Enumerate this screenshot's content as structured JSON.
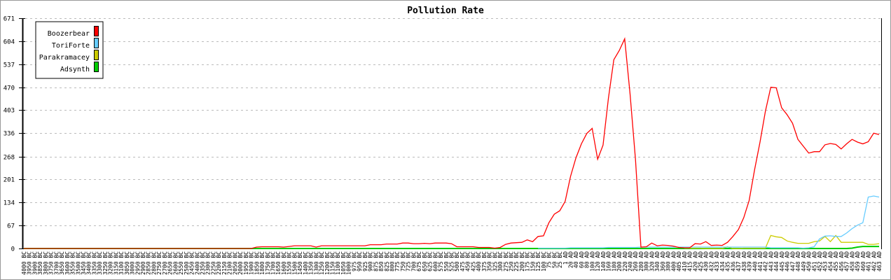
{
  "chart_data": {
    "type": "line",
    "title": "Pollution Rate",
    "xlabel": "",
    "ylabel": "",
    "ylim": [
      0,
      671
    ],
    "yticks": [
      0,
      67,
      134,
      201,
      268,
      336,
      403,
      470,
      537,
      604,
      671
    ],
    "grid": "horizontal dashed",
    "legend_position": "top-left",
    "categories": [
      "4000 BC",
      "3950 BC",
      "3900 BC",
      "3850 BC",
      "3800 BC",
      "3750 BC",
      "3700 BC",
      "3650 BC",
      "3600 BC",
      "3550 BC",
      "3500 BC",
      "3450 BC",
      "3400 BC",
      "3350 BC",
      "3300 BC",
      "3250 BC",
      "3200 BC",
      "3150 BC",
      "3100 BC",
      "3050 BC",
      "3000 BC",
      "2950 BC",
      "2900 BC",
      "2850 BC",
      "2800 BC",
      "2750 BC",
      "2700 BC",
      "2650 BC",
      "2600 BC",
      "2550 BC",
      "2500 BC",
      "2450 BC",
      "2400 BC",
      "2350 BC",
      "2300 BC",
      "2250 BC",
      "2200 BC",
      "2150 BC",
      "2100 BC",
      "2050 BC",
      "2000 BC",
      "1950 BC",
      "1900 BC",
      "1850 BC",
      "1800 BC",
      "1750 BC",
      "1700 BC",
      "1650 BC",
      "1600 BC",
      "1550 BC",
      "1500 BC",
      "1450 BC",
      "1400 BC",
      "1350 BC",
      "1300 BC",
      "1250 BC",
      "1200 BC",
      "1150 BC",
      "1100 BC",
      "1050 BC",
      "1000 BC",
      "975 BC",
      "950 BC",
      "925 BC",
      "900 BC",
      "875 BC",
      "850 BC",
      "825 BC",
      "800 BC",
      "775 BC",
      "750 BC",
      "725 BC",
      "700 BC",
      "675 BC",
      "650 BC",
      "625 BC",
      "600 BC",
      "575 BC",
      "550 BC",
      "525 BC",
      "500 BC",
      "475 BC",
      "450 BC",
      "425 BC",
      "400 BC",
      "375 BC",
      "350 BC",
      "325 BC",
      "300 BC",
      "275 BC",
      "250 BC",
      "225 BC",
      "200 BC",
      "175 BC",
      "150 BC",
      "125 BC",
      "100 BC",
      "75 BC",
      "50 BC",
      "25 BC",
      "1 AD",
      "20 AD",
      "40 AD",
      "60 AD",
      "80 AD",
      "100 AD",
      "120 AD",
      "140 AD",
      "160 AD",
      "180 AD",
      "200 AD",
      "220 AD",
      "240 AD",
      "260 AD",
      "280 AD",
      "300 AD",
      "320 AD",
      "340 AD",
      "360 AD",
      "380 AD",
      "400 AD",
      "405 AD",
      "410 AD",
      "415 AD",
      "420 AD",
      "425 AD",
      "430 AD",
      "432 AD",
      "433 AD",
      "434 AD",
      "435 AD",
      "436 AD",
      "437 AD",
      "438 AD",
      "439 AD",
      "440 AD",
      "441 AD",
      "442 AD",
      "443 AD",
      "444 AD",
      "445 AD",
      "446 AD",
      "447 AD",
      "448 AD",
      "449 AD",
      "450 AD",
      "451 AD",
      "452 AD",
      "453 AD",
      "454 AD",
      "455 AD",
      "456 AD",
      "457 AD",
      "458 AD",
      "459 AD",
      "460 AD",
      "461 AD",
      "462 AD",
      "463 AD"
    ],
    "series": [
      {
        "name": "Boozerbear",
        "color": "#ff0000",
        "values": [
          0,
          0,
          0,
          0,
          0,
          0,
          0,
          0,
          0,
          0,
          0,
          0,
          0,
          0,
          0,
          0,
          0,
          0,
          0,
          0,
          0,
          0,
          0,
          0,
          0,
          0,
          0,
          0,
          0,
          0,
          0,
          0,
          0,
          0,
          0,
          0,
          0,
          0,
          0,
          0,
          0,
          0,
          0,
          4,
          5,
          5,
          5,
          5,
          4,
          6,
          8,
          8,
          8,
          8,
          4,
          8,
          8,
          8,
          8,
          8,
          8,
          8,
          8,
          8,
          11,
          11,
          11,
          13,
          13,
          13,
          16,
          16,
          14,
          14,
          15,
          14,
          16,
          16,
          16,
          14,
          5,
          5,
          5,
          5,
          3,
          3,
          3,
          1,
          3,
          12,
          16,
          17,
          18,
          25,
          20,
          35,
          37,
          75,
          100,
          110,
          137,
          210,
          264,
          305,
          335,
          350,
          260,
          301,
          438,
          550,
          577,
          611,
          450,
          260,
          4,
          5,
          16,
          8,
          10,
          9,
          7,
          3,
          2,
          2,
          14,
          13,
          20,
          9,
          10,
          9,
          18,
          35,
          55,
          90,
          140,
          230,
          310,
          400,
          470,
          468,
          410,
          390,
          365,
          318,
          298,
          278,
          282,
          282,
          302,
          306,
          303,
          290,
          305,
          318,
          310,
          305,
          311,
          336,
          332
        ]
      },
      {
        "name": "ToriForte",
        "color": "#66ccff",
        "values": [
          null,
          null,
          null,
          null,
          null,
          null,
          null,
          null,
          null,
          null,
          null,
          null,
          null,
          null,
          null,
          null,
          null,
          null,
          null,
          null,
          null,
          null,
          null,
          null,
          null,
          null,
          null,
          null,
          null,
          null,
          null,
          null,
          null,
          null,
          null,
          null,
          null,
          null,
          null,
          null,
          null,
          null,
          null,
          null,
          null,
          null,
          null,
          null,
          null,
          null,
          null,
          null,
          null,
          null,
          null,
          null,
          null,
          null,
          null,
          null,
          null,
          null,
          null,
          null,
          null,
          null,
          null,
          null,
          null,
          null,
          null,
          null,
          null,
          null,
          null,
          null,
          null,
          null,
          null,
          null,
          null,
          null,
          null,
          null,
          null,
          null,
          null,
          null,
          null,
          null,
          null,
          null,
          null,
          null,
          null,
          1,
          1,
          1,
          1,
          1,
          1,
          2,
          2,
          2,
          2,
          2,
          2,
          2,
          3,
          3,
          3,
          3,
          3,
          3,
          4,
          4,
          4,
          4,
          4,
          4,
          4,
          4,
          4,
          4,
          4,
          4,
          4,
          4,
          4,
          4,
          4,
          4,
          4,
          4,
          4,
          4,
          4,
          4,
          2,
          2,
          2,
          2,
          2,
          2,
          1,
          2,
          5,
          28,
          36,
          37,
          35,
          35,
          45,
          58,
          68,
          75,
          150,
          153,
          150
        ]
      },
      {
        "name": "Parakramacey",
        "color": "#cccc00",
        "values": [
          null,
          null,
          null,
          null,
          null,
          null,
          null,
          null,
          null,
          null,
          null,
          null,
          null,
          null,
          null,
          null,
          null,
          null,
          null,
          null,
          null,
          null,
          null,
          null,
          null,
          null,
          null,
          null,
          null,
          null,
          null,
          null,
          null,
          null,
          null,
          null,
          null,
          null,
          null,
          null,
          null,
          null,
          null,
          null,
          null,
          null,
          null,
          null,
          null,
          null,
          null,
          null,
          null,
          null,
          null,
          null,
          null,
          null,
          null,
          null,
          null,
          null,
          null,
          null,
          null,
          null,
          null,
          null,
          null,
          null,
          null,
          null,
          null,
          null,
          null,
          null,
          null,
          null,
          null,
          null,
          null,
          null,
          null,
          null,
          null,
          null,
          null,
          null,
          null,
          null,
          null,
          null,
          null,
          null,
          null,
          null,
          null,
          null,
          null,
          null,
          null,
          null,
          null,
          null,
          null,
          null,
          null,
          null,
          null,
          null,
          null,
          null,
          null,
          null,
          null,
          null,
          null,
          null,
          null,
          null,
          null,
          null,
          1,
          1,
          1,
          1,
          0,
          0,
          0,
          0,
          5,
          0,
          0,
          1,
          1,
          1,
          1,
          1,
          38,
          34,
          32,
          22,
          18,
          15,
          15,
          15,
          20,
          22,
          35,
          20,
          38,
          18,
          18,
          18,
          18,
          18,
          12,
          12,
          14
        ]
      },
      {
        "name": "Adsynth",
        "color": "#00cc00",
        "values": [
          0,
          0,
          0,
          0,
          0,
          0,
          0,
          0,
          0,
          0,
          0,
          0,
          0,
          0,
          0,
          0,
          0,
          0,
          0,
          0,
          0,
          0,
          0,
          0,
          0,
          0,
          0,
          0,
          0,
          0,
          0,
          0,
          0,
          0,
          0,
          0,
          0,
          0,
          0,
          0,
          0,
          0,
          0,
          0,
          0,
          0,
          0,
          0,
          0,
          0,
          0,
          0,
          0,
          0,
          0,
          0,
          0,
          0,
          0,
          0,
          0,
          0,
          0,
          0,
          0,
          0,
          0,
          0,
          0,
          0,
          0,
          0,
          0,
          0,
          0,
          0,
          0,
          0,
          0,
          0,
          0,
          0,
          0,
          0,
          0,
          0,
          0,
          0,
          0,
          0,
          0,
          0,
          0,
          0,
          0,
          0,
          0,
          0,
          0,
          0,
          0,
          0,
          0,
          0,
          0,
          0,
          0,
          0,
          0,
          0,
          0,
          0,
          0,
          0,
          0,
          0,
          0,
          0,
          0,
          0,
          0,
          0,
          0,
          0,
          0,
          0,
          0,
          0,
          0,
          0,
          0,
          0,
          0,
          0,
          0,
          0,
          0,
          0,
          0,
          0,
          0,
          0,
          0,
          0,
          0,
          0,
          0,
          0,
          0,
          0,
          0,
          0,
          0,
          1,
          4,
          6,
          6,
          6,
          6
        ]
      }
    ]
  }
}
